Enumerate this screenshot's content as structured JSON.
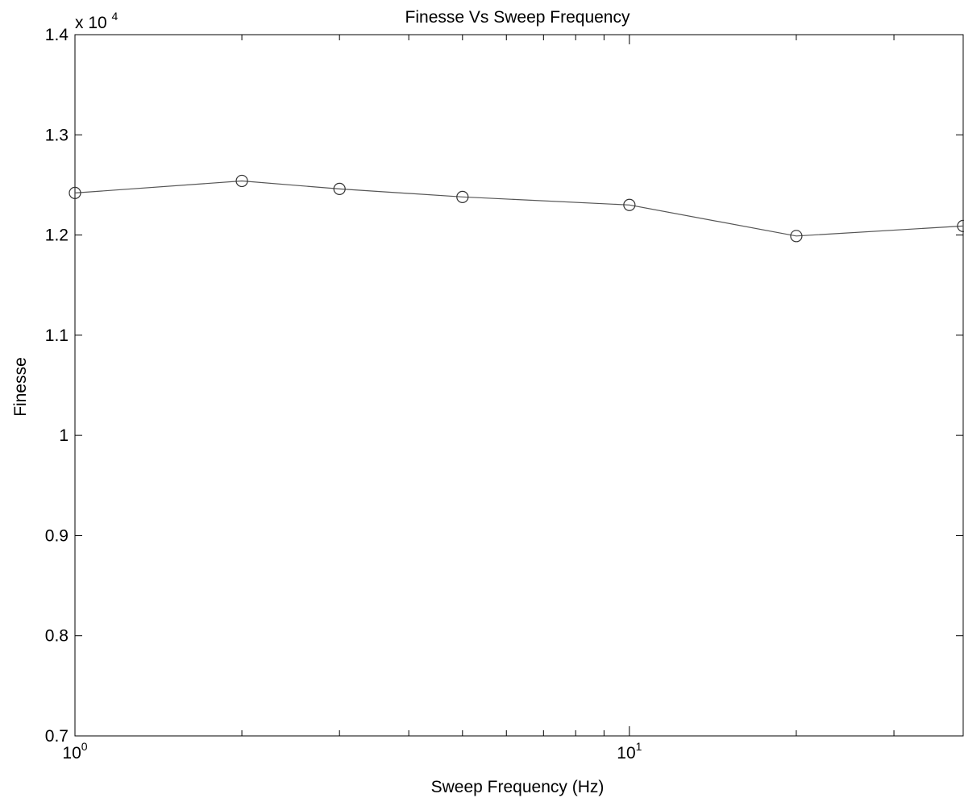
{
  "chart_data": {
    "type": "line",
    "title": "Finesse Vs Sweep Frequency",
    "xlabel": "Sweep Frequency (Hz)",
    "ylabel": "Finesse",
    "x_scale": "log",
    "xlim": [
      1,
      40
    ],
    "ylim": [
      7000,
      14000
    ],
    "y_multiplier_label": {
      "base": "x 10",
      "exponent": "4"
    },
    "x_major_ticks": [
      {
        "value": 1,
        "base": "10",
        "exponent": "0"
      },
      {
        "value": 10,
        "base": "10",
        "exponent": "1"
      }
    ],
    "x_minor_ticks": [
      2,
      3,
      4,
      5,
      6,
      7,
      8,
      9,
      20,
      30
    ],
    "y_ticks": [
      {
        "value": 7000,
        "label": "0.7"
      },
      {
        "value": 8000,
        "label": "0.8"
      },
      {
        "value": 9000,
        "label": "0.9"
      },
      {
        "value": 10000,
        "label": "1"
      },
      {
        "value": 11000,
        "label": "1.1"
      },
      {
        "value": 12000,
        "label": "1.2"
      },
      {
        "value": 13000,
        "label": "1.3"
      },
      {
        "value": 14000,
        "label": "1.4"
      }
    ],
    "grid": false,
    "series": [
      {
        "marker": "circle",
        "color": "#555555",
        "x": [
          1,
          2,
          3,
          5,
          10,
          20,
          40
        ],
        "y": [
          12420,
          12540,
          12460,
          12380,
          12300,
          11990,
          12090
        ]
      }
    ]
  }
}
